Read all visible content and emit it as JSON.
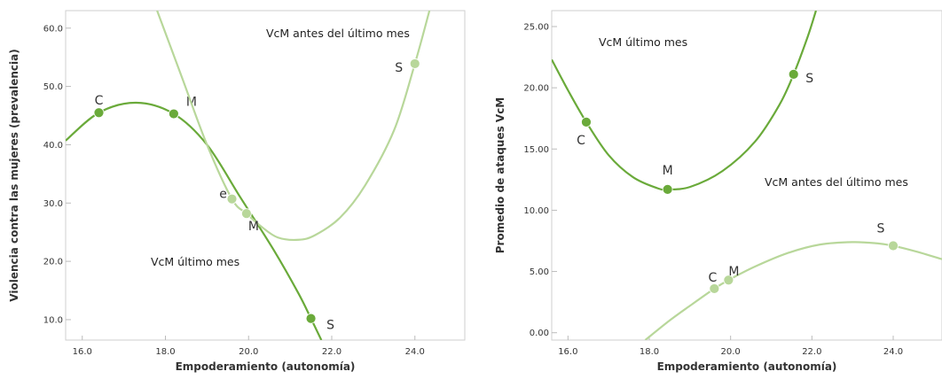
{
  "chart_data": [
    {
      "type": "scatter",
      "xlabel": "Empoderamiento (autonomía)",
      "ylabel": "Violencia contra las mujeres (prevalencia)",
      "xlim": [
        15.6,
        25.2
      ],
      "ylim": [
        6.5,
        63.0
      ],
      "x_ticks": [
        "16.0",
        "18.0",
        "20.0",
        "22.0",
        "24.0"
      ],
      "y_ticks": [
        "10.0",
        "20.0",
        "30.0",
        "40.0",
        "50.0",
        "60.0"
      ],
      "grid": false,
      "annotations": [
        "VcM antes del último mes",
        "VcM último mes"
      ],
      "series": [
        {
          "color": "#6aaa3a",
          "points": [
            {
              "label": "C",
              "x": 16.4,
              "y": 45.5
            },
            {
              "label": "M",
              "x": 18.2,
              "y": 45.3
            },
            {
              "label": "S",
              "x": 21.5,
              "y": 10.2
            }
          ],
          "curve": [
            [
              15.6,
              40.7
            ],
            [
              16.4,
              45.5
            ],
            [
              17.3,
              47.2
            ],
            [
              18.2,
              45.3
            ],
            [
              19.0,
              40.0
            ],
            [
              19.8,
              31.0
            ],
            [
              20.6,
              22.0
            ],
            [
              21.2,
              14.5
            ],
            [
              21.5,
              10.2
            ],
            [
              21.75,
              6.5
            ]
          ]
        },
        {
          "color": "#b8d79a",
          "points": [
            {
              "label": "e",
              "x": 19.6,
              "y": 30.7
            },
            {
              "label": "M",
              "x": 19.95,
              "y": 28.2
            },
            {
              "label": "S",
              "x": 24.0,
              "y": 53.9
            }
          ],
          "curve": [
            [
              17.8,
              63.0
            ],
            [
              18.4,
              51.5
            ],
            [
              19.0,
              40.0
            ],
            [
              19.6,
              30.7
            ],
            [
              19.95,
              28.2
            ],
            [
              20.3,
              26.0
            ],
            [
              20.7,
              24.1
            ],
            [
              21.2,
              23.7
            ],
            [
              21.6,
              24.5
            ],
            [
              22.2,
              27.5
            ],
            [
              22.8,
              33.0
            ],
            [
              23.5,
              42.5
            ],
            [
              24.0,
              53.9
            ],
            [
              24.35,
              63.0
            ]
          ]
        }
      ]
    },
    {
      "type": "scatter",
      "xlabel": "Empoderamiento (autonomía)",
      "ylabel": "Promedio de ataques VcM",
      "xlim": [
        15.6,
        25.2
      ],
      "ylim": [
        -0.6,
        26.3
      ],
      "x_ticks": [
        "16.0",
        "18.0",
        "20.0",
        "22.0",
        "24.0"
      ],
      "y_ticks": [
        "0.00",
        "5.00",
        "10.00",
        "15.00",
        "20.00",
        "25.00"
      ],
      "grid": false,
      "annotations": [
        "VcM último mes",
        "VcM antes del último mes"
      ],
      "series": [
        {
          "color": "#6aaa3a",
          "points": [
            {
              "label": "C",
              "x": 16.45,
              "y": 17.2
            },
            {
              "label": "M",
              "x": 18.45,
              "y": 11.7
            },
            {
              "label": "S",
              "x": 21.55,
              "y": 21.1
            }
          ],
          "curve": [
            [
              15.6,
              22.3
            ],
            [
              16.0,
              19.8
            ],
            [
              16.45,
              17.2
            ],
            [
              17.0,
              14.5
            ],
            [
              17.6,
              12.7
            ],
            [
              18.2,
              11.8
            ],
            [
              18.45,
              11.7
            ],
            [
              19.0,
              11.9
            ],
            [
              19.8,
              13.2
            ],
            [
              20.6,
              15.6
            ],
            [
              21.2,
              18.6
            ],
            [
              21.55,
              21.1
            ],
            [
              21.9,
              24.2
            ],
            [
              22.1,
              26.3
            ]
          ]
        },
        {
          "color": "#b8d79a",
          "points": [
            {
              "label": "C",
              "x": 19.6,
              "y": 3.6
            },
            {
              "label": "M",
              "x": 19.95,
              "y": 4.3
            },
            {
              "label": "S",
              "x": 24.0,
              "y": 7.1
            }
          ],
          "curve": [
            [
              17.9,
              -0.6
            ],
            [
              18.5,
              1.0
            ],
            [
              19.0,
              2.2
            ],
            [
              19.6,
              3.6
            ],
            [
              19.95,
              4.3
            ],
            [
              20.6,
              5.4
            ],
            [
              21.4,
              6.5
            ],
            [
              22.2,
              7.2
            ],
            [
              23.0,
              7.4
            ],
            [
              23.6,
              7.3
            ],
            [
              24.0,
              7.1
            ],
            [
              24.6,
              6.6
            ],
            [
              25.2,
              6.0
            ]
          ]
        }
      ]
    }
  ]
}
